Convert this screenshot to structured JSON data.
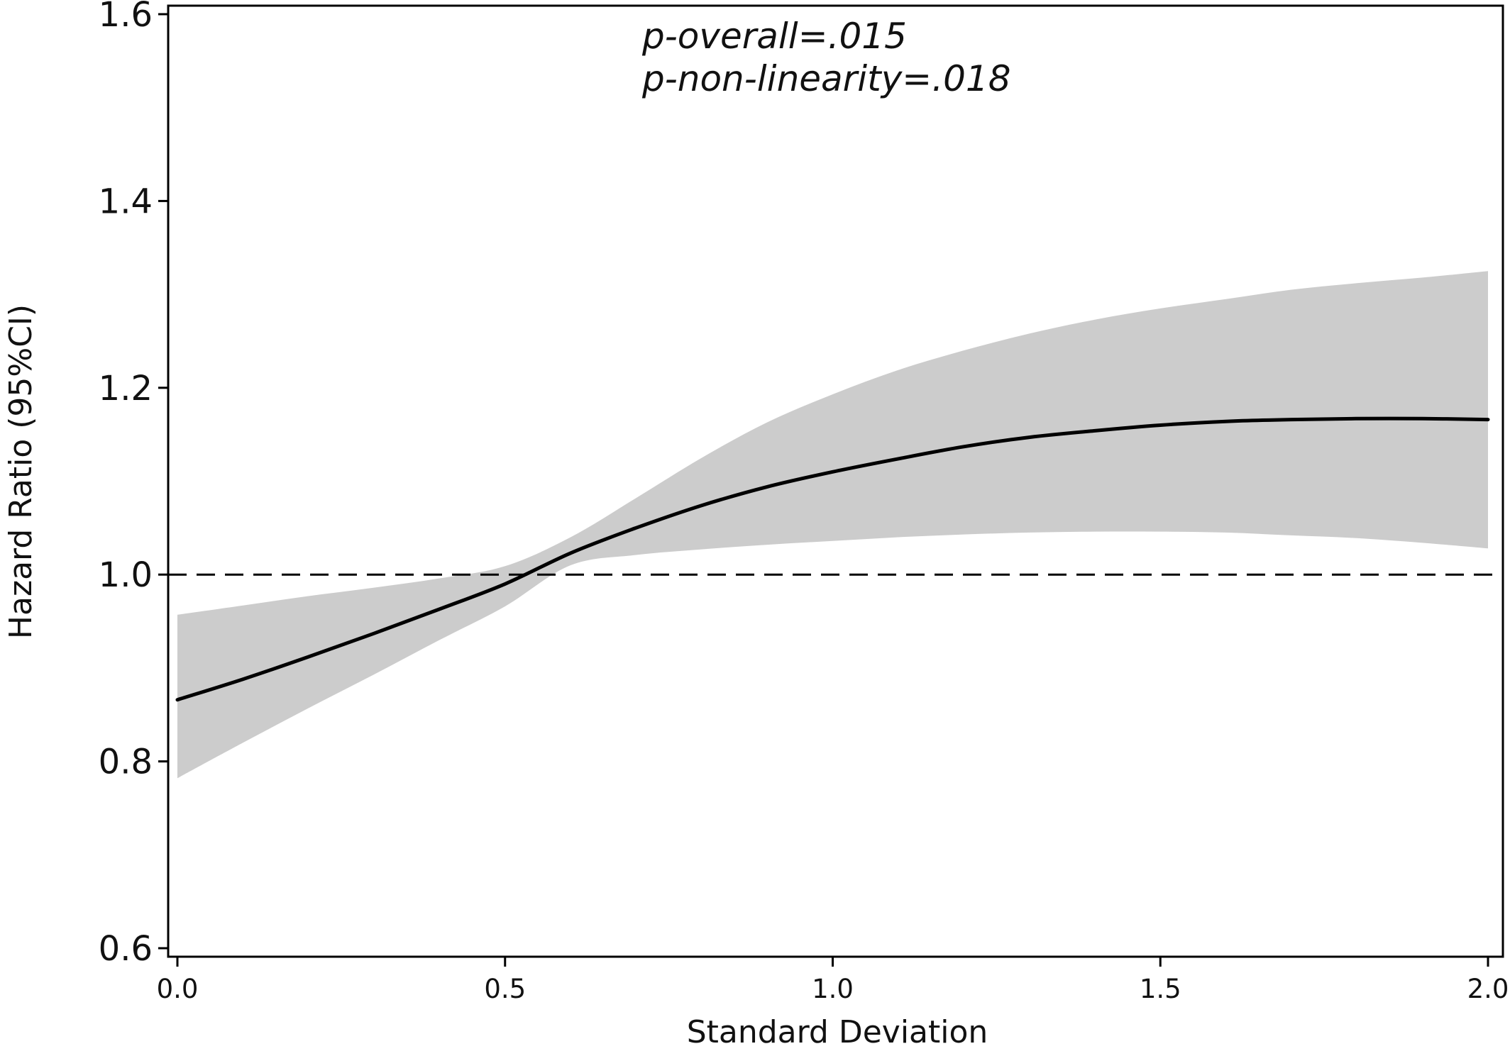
{
  "chart_data": {
    "type": "line",
    "title": "",
    "xlabel": "Standard Deviation",
    "ylabel": "Hazard Ratio (95%CI)",
    "xlim": [
      0.0,
      2.0
    ],
    "ylim": [
      0.6,
      1.6
    ],
    "x_ticks": [
      "0.0",
      "0.5",
      "1.0",
      "1.5",
      "2.0"
    ],
    "y_ticks": [
      "0.6",
      "0.8",
      "1.0",
      "1.2",
      "1.4",
      "1.6"
    ],
    "reference_line": {
      "y": 1.0,
      "style": "dashed"
    },
    "grid": false,
    "legend": "none",
    "annotations": [
      "p-overall=.015",
      "p-non-linearity=.018"
    ],
    "series": [
      {
        "x": [
          0.0,
          0.1,
          0.2,
          0.3,
          0.4,
          0.5,
          0.6,
          0.7,
          0.8,
          0.9,
          1.0,
          1.1,
          1.2,
          1.3,
          1.4,
          1.5,
          1.6,
          1.7,
          1.8,
          1.9,
          2.0
        ],
        "values": [
          0.866,
          0.888,
          0.912,
          0.937,
          0.963,
          0.99,
          1.023,
          1.05,
          1.074,
          1.094,
          1.11,
          1.124,
          1.137,
          1.147,
          1.154,
          1.16,
          1.164,
          1.166,
          1.167,
          1.167,
          1.166
        ],
        "ci_lower": [
          0.782,
          0.82,
          0.857,
          0.893,
          0.93,
          0.966,
          1.01,
          1.021,
          1.027,
          1.032,
          1.036,
          1.04,
          1.043,
          1.045,
          1.046,
          1.046,
          1.045,
          1.042,
          1.039,
          1.034,
          1.028
        ],
        "ci_upper": [
          0.957,
          0.967,
          0.977,
          0.986,
          0.996,
          1.009,
          1.04,
          1.082,
          1.125,
          1.163,
          1.193,
          1.219,
          1.24,
          1.258,
          1.273,
          1.285,
          1.295,
          1.305,
          1.312,
          1.318,
          1.325
        ],
        "line_color": "#000000",
        "band_color": "#cccccc"
      }
    ]
  }
}
